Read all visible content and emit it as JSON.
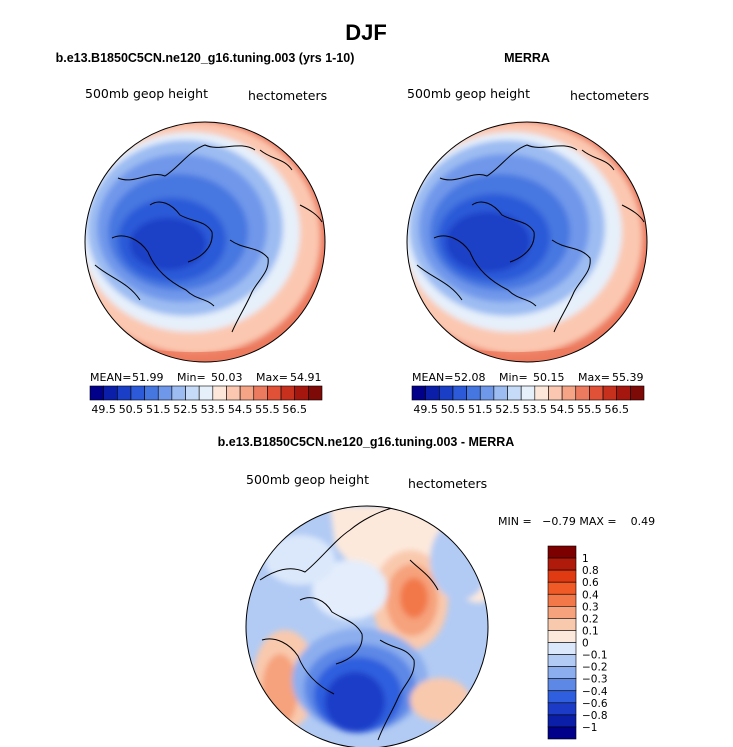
{
  "chart_data": [
    {
      "type": "heatmap",
      "projection": "north-polar-stereographic",
      "title": "b.e13.B1850C5CN.ne120_g16.tuning.003 (yrs 1-10)",
      "left_label": "500mb geop height",
      "right_label": "hectometers",
      "stats": {
        "mean_label": "MEAN=",
        "mean": "51.99",
        "min_label": "Min=",
        "min": "50.03",
        "max_label": "Max=",
        "max": "54.91"
      },
      "colorbar_ticks": [
        "49.5",
        "50.5",
        "51.5",
        "52.5",
        "53.5",
        "54.5",
        "55.5",
        "56.5"
      ],
      "field_range": [
        50.03,
        54.91
      ]
    },
    {
      "type": "heatmap",
      "projection": "north-polar-stereographic",
      "title": "MERRA",
      "left_label": "500mb geop height",
      "right_label": "hectometers",
      "stats": {
        "mean_label": "MEAN=",
        "mean": "52.08",
        "min_label": "Min=",
        "min": "50.15",
        "max_label": "Max=",
        "max": "55.39"
      },
      "colorbar_ticks": [
        "49.5",
        "50.5",
        "51.5",
        "52.5",
        "53.5",
        "54.5",
        "55.5",
        "56.5"
      ],
      "field_range": [
        50.15,
        55.39
      ]
    },
    {
      "type": "heatmap",
      "projection": "north-polar-stereographic",
      "title": "b.e13.B1850C5CN.ne120_g16.tuning.003 - MERRA",
      "left_label": "500mb geop height",
      "right_label": "hectometers",
      "stats_text": "MIN =   −0.79 MAX =    0.49",
      "colorbar_ticks": [
        "1",
        "0.8",
        "0.6",
        "0.4",
        "0.3",
        "0.2",
        "0.1",
        "0",
        "−0.1",
        "−0.2",
        "−0.3",
        "−0.4",
        "−0.6",
        "−0.8",
        "−1"
      ],
      "field_range": [
        -0.79,
        0.49
      ]
    }
  ],
  "figure_title": "DJF",
  "colors": {
    "abs_scale": [
      "#00008b",
      "#0a1eaa",
      "#1a3fc6",
      "#2c5ad8",
      "#4677e0",
      "#6f97ea",
      "#9cbcf2",
      "#c5dbf8",
      "#e6f0fb",
      "#fde7da",
      "#fbc7b0",
      "#f5a486",
      "#ec7a5e",
      "#e05138",
      "#c8301e",
      "#a5170e",
      "#7d0a06"
    ],
    "diff_scale": [
      "#7d0000",
      "#b01a0a",
      "#e03a12",
      "#f05a26",
      "#f2784a",
      "#f6a27c",
      "#f9c9ad",
      "#fde9dc",
      "#dbe8fb",
      "#b2cbf4",
      "#8caeee",
      "#5d88e6",
      "#2f5fde",
      "#1c3cc8",
      "#0b1ea8",
      "#00008b"
    ],
    "coast": "#000000"
  }
}
